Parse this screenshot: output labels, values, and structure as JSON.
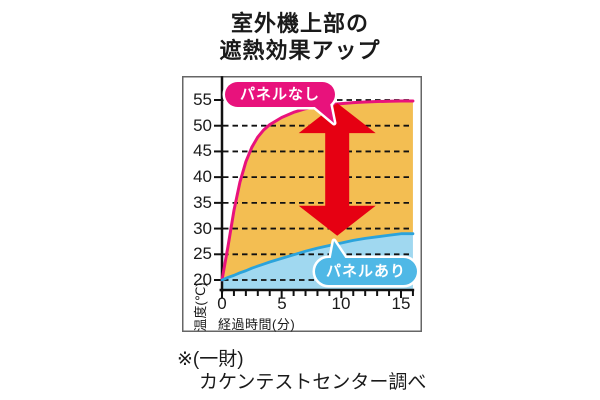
{
  "title": {
    "line1": "室外機上部の",
    "line2": "遮熱効果アップ"
  },
  "chart": {
    "y_axis_label": "温度(℃)",
    "x_axis_label": "経過時間(分)",
    "y_ticks": [
      "55",
      "50",
      "45",
      "40",
      "35",
      "30",
      "25",
      "20"
    ],
    "x_ticks": [
      "0",
      "5",
      "10",
      "15"
    ],
    "no_panel_label": "パネルなし",
    "with_panel_label": "パネルあり"
  },
  "footnote": {
    "line1": "※(一財)",
    "line2": "カケンテストセンター調べ"
  },
  "colors": {
    "no_panel_line": "#e8127c",
    "no_panel_area": "#f3be52",
    "with_panel_line": "#2ba3db",
    "with_panel_area": "#a0d8f0",
    "with_panel_bubble": "#4fb8e6",
    "arrow_red": "#e60012",
    "frame_gray": "#666666"
  },
  "chart_data": {
    "type": "area",
    "title": "室外機上部の遮熱効果アップ",
    "xlabel": "経過時間(分)",
    "ylabel": "温度(℃)",
    "xlim": [
      0,
      16
    ],
    "ylim": [
      20,
      55
    ],
    "yticks": [
      55,
      50,
      45,
      40,
      35,
      30,
      25,
      20
    ],
    "xticks": [
      0,
      5,
      10,
      15
    ],
    "grid": "horizontal dashed",
    "x": [
      0,
      0.5,
      1,
      1.5,
      2,
      2.5,
      3,
      3.5,
      4,
      5,
      6,
      7,
      8,
      9,
      10,
      11,
      12,
      13,
      14,
      15
    ],
    "series": [
      {
        "name": "パネルなし",
        "values": [
          20,
          26.5,
          33.5,
          39,
          43,
          45.8,
          47.8,
          49.2,
          50.2,
          51.6,
          52.6,
          53.3,
          53.8,
          54.1,
          54.3,
          54.5,
          54.6,
          54.7,
          54.75,
          54.8
        ]
      },
      {
        "name": "パネルあり",
        "values": [
          20,
          20.5,
          20.9,
          21.4,
          21.8,
          22.3,
          22.7,
          23.1,
          23.5,
          24.2,
          24.9,
          25.6,
          26.2,
          26.7,
          27.2,
          27.7,
          28.1,
          28.4,
          28.7,
          29
        ]
      }
    ],
    "annotation_arrow": {
      "x_min": 9.65,
      "temp_low": 28.6,
      "temp_high": 54.4
    }
  }
}
